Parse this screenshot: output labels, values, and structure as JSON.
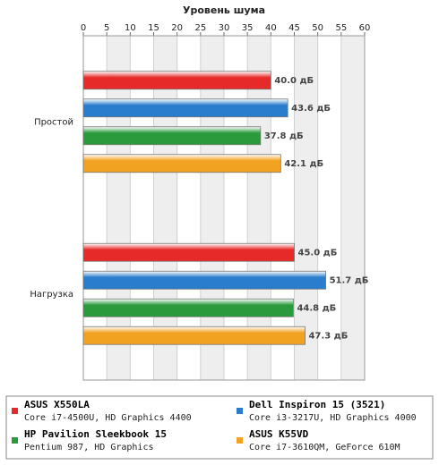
{
  "chart_data": {
    "type": "bar",
    "orientation": "horizontal",
    "title": "Уровень шума",
    "categories": [
      "Простой",
      "Нагрузка"
    ],
    "series": [
      {
        "name": "ASUS X550LA",
        "description": "Core i7-4500U, HD Graphics 4400",
        "color": "#e62a2a",
        "values": [
          40.0,
          45.0
        ],
        "value_labels": [
          "40.0 дБ",
          "45.0 дБ"
        ]
      },
      {
        "name": "Dell Inspiron 15 (3521)",
        "description": "Core i3-3217U, HD Graphics 4000",
        "color": "#2a7ccc",
        "values": [
          43.6,
          51.7
        ],
        "value_labels": [
          "43.6 дБ",
          "51.7 дБ"
        ]
      },
      {
        "name": "HP Pavilion Sleekbook 15",
        "description": "Pentium 987, HD Graphics",
        "color": "#2a9a3c",
        "values": [
          37.8,
          44.8
        ],
        "value_labels": [
          "37.8 дБ",
          "44.8 дБ"
        ]
      },
      {
        "name": "ASUS K55VD",
        "description": "Core i7-3610QM, GeForce 610M",
        "color": "#f2a221",
        "values": [
          42.1,
          47.3
        ],
        "value_labels": [
          "42.1 дБ",
          "47.3 дБ"
        ]
      }
    ],
    "xlim": [
      0,
      60
    ],
    "xticks": [
      0,
      5,
      10,
      15,
      20,
      25,
      30,
      35,
      40,
      45,
      50,
      55,
      60
    ],
    "grid": true
  }
}
